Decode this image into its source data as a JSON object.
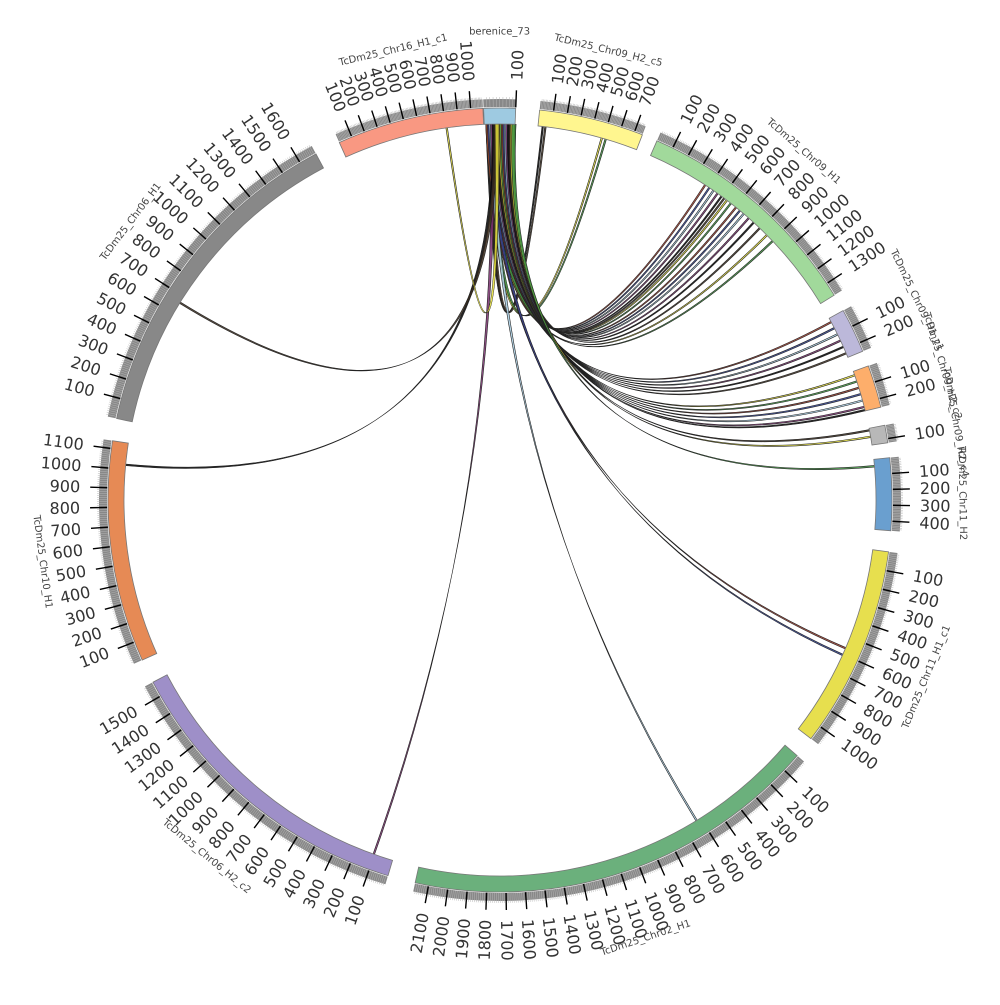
{
  "diagram": {
    "type": "circos",
    "hub": "berenice_73",
    "tick_step_kb": 100,
    "colors": {
      "ribbon_palette": [
        "#000000",
        "#3b2d1e",
        "#e4de3a",
        "#3f9440",
        "#9b3a2a",
        "#2e3f8f",
        "#a7cde2",
        "#7a2f6f"
      ],
      "tick_bar": "#888888",
      "tick_mark": "#000000",
      "segment_border": "#777777"
    },
    "chromosomes": [
      {
        "id": "berenice",
        "label": "berenice_73",
        "size": 100,
        "color": "#9ecae1"
      },
      {
        "id": "chr09h2c5",
        "label": "TcDm25_Chr09_H2_c5",
        "size": 760,
        "color": "#fff68f"
      },
      {
        "id": "chr09h1",
        "label": "TcDm25_Chr09_H1",
        "size": 1380,
        "color": "#a1d99b"
      },
      {
        "id": "chr09c1",
        "label": "TcDm25_Chr09_H1_c1",
        "size": 250,
        "color": "#bcb8da"
      },
      {
        "id": "chr09c2",
        "label": "TcDm25_Chr09_H2_c2",
        "size": 250,
        "color": "#fdae6b"
      },
      {
        "id": "chr09c4",
        "label": "TcDm25_Chr09_H2_c4",
        "size": 130,
        "color": "#b8b8b8"
      },
      {
        "id": "chr11h2",
        "label": "TcDm25_Chr11_H2",
        "size": 460,
        "color": "#6a9fcf"
      },
      {
        "id": "chr11h1c1",
        "label": "TcDm25_Chr11_H1_c1",
        "size": 1080,
        "color": "#e7df4e"
      },
      {
        "id": "chr02h1",
        "label": "TcDm25_Chr02_H1",
        "size": 2170,
        "color": "#6bb07c"
      },
      {
        "id": "chr06h2c2",
        "label": "TcDm25_Chr06_H2_c2",
        "size": 1580,
        "color": "#9e8fc8"
      },
      {
        "id": "chr10h1",
        "label": "TcDm25_Chr10_H1",
        "size": 1140,
        "color": "#e68a55"
      },
      {
        "id": "chr06h1",
        "label": "TcDm25_Chr06_H1",
        "size": 1690,
        "color": "#888888"
      },
      {
        "id": "chr16h1c1",
        "label": "TcDm25_Chr16_H1_c1",
        "size": 1090,
        "color": "#f99882"
      }
    ],
    "links": [
      {
        "target": "chr09h2c5",
        "positions": [
          30,
          50
        ]
      },
      {
        "target": "chr09h2c5",
        "positions": [
          480,
          510
        ]
      },
      {
        "target": "chr09h1",
        "positions": [
          370,
          400,
          430,
          460,
          490,
          510,
          530,
          560,
          600,
          630,
          660,
          700,
          740,
          790,
          850,
          900
        ]
      },
      {
        "target": "chr09c1",
        "positions": [
          20,
          60,
          100,
          140,
          180,
          220
        ]
      },
      {
        "target": "chr09c2",
        "positions": [
          20,
          60,
          100,
          140,
          180,
          220,
          240
        ]
      },
      {
        "target": "chr09c4",
        "positions": [
          10,
          60
        ]
      },
      {
        "target": "chr11h2",
        "positions": [
          40
        ]
      },
      {
        "target": "chr11h1c1",
        "positions": [
          560,
          600
        ]
      },
      {
        "target": "chr02h1",
        "positions": [
          620
        ]
      },
      {
        "target": "chr06h2c2",
        "positions": [
          100
        ]
      },
      {
        "target": "chr10h1",
        "positions": [
          1020
        ]
      },
      {
        "target": "chr06h1",
        "positions": [
          660
        ]
      },
      {
        "target": "chr16h1c1",
        "positions": [
          800
        ]
      }
    ]
  }
}
